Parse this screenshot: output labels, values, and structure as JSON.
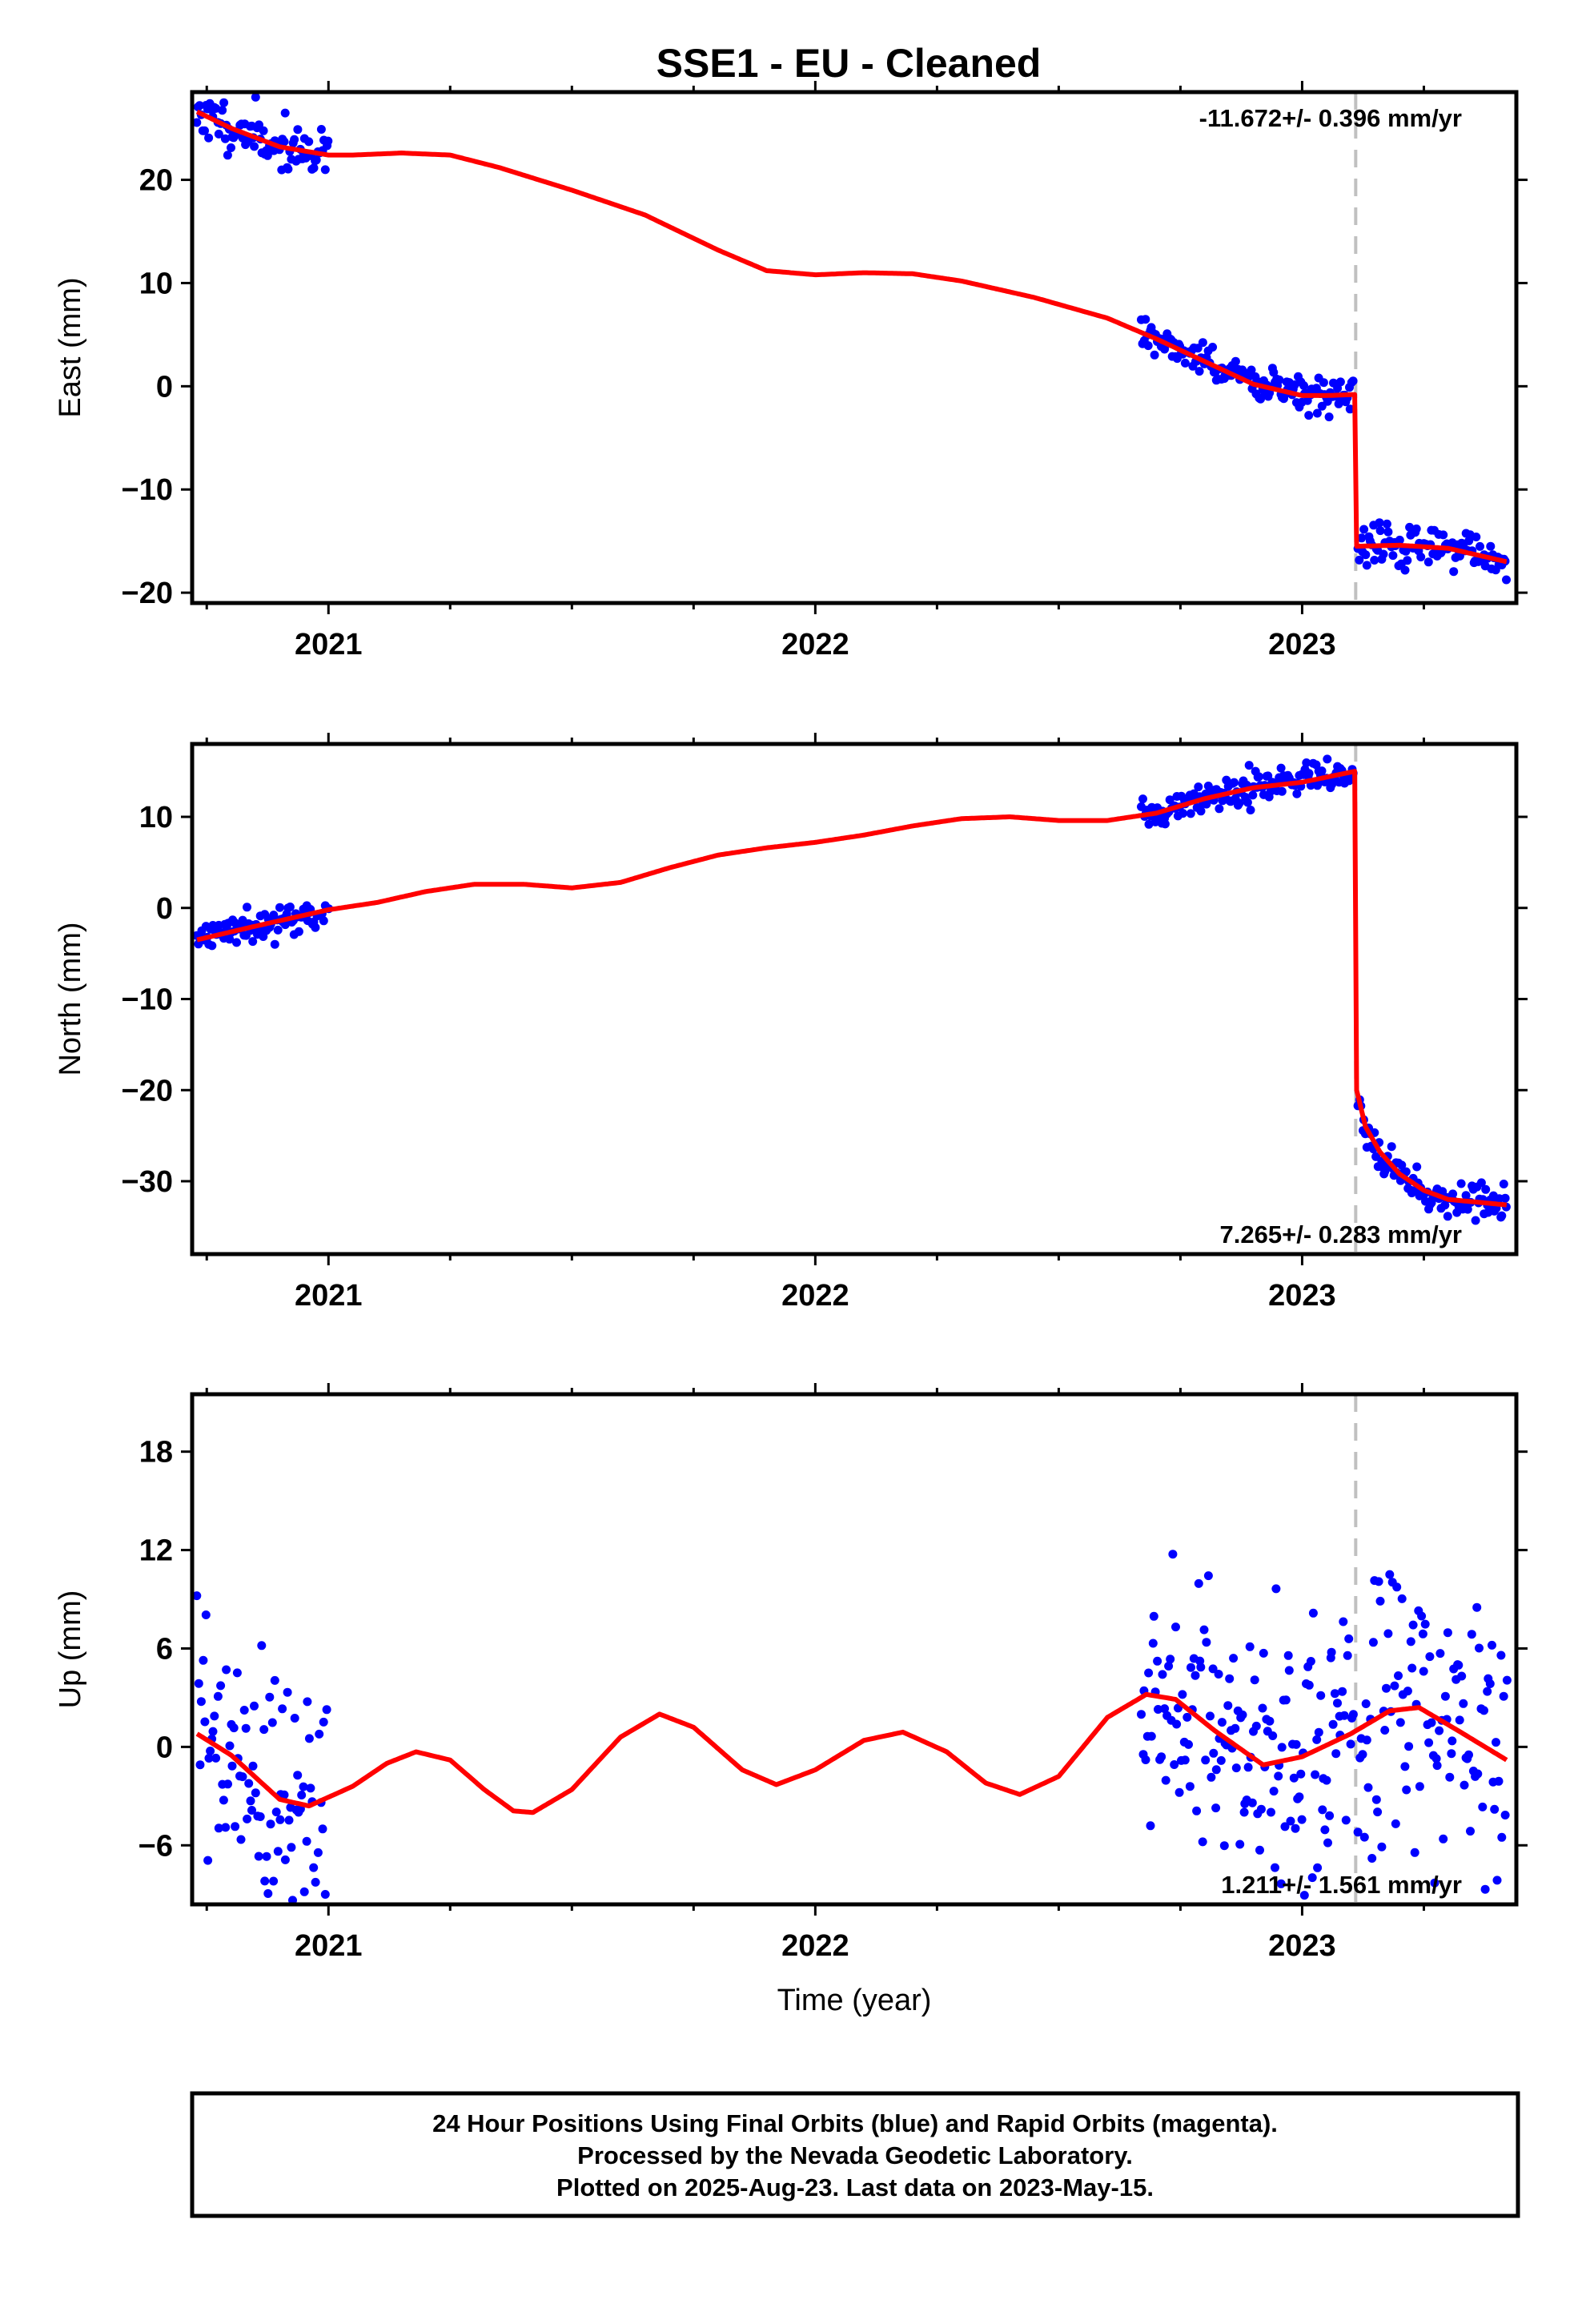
{
  "title": "SSE1  - EU - Cleaned",
  "footer": {
    "line1": "24 Hour Positions Using Final Orbits (blue) and Rapid Orbits (magenta).",
    "line2": "Processed by the Nevada Geodetic Laboratory.",
    "line3": "Plotted on 2025-Aug-23. Last data on 2023-May-15."
  },
  "colors": {
    "data_points": "#0000ff",
    "model_fit": "#ff0000",
    "break_line": "#c0c0c0",
    "frame": "#000000"
  },
  "chart_data": [
    {
      "type": "scatter",
      "id": "east",
      "ylabel": "East (mm)",
      "xlabel": "",
      "xlim": [
        2020.72,
        2023.44
      ],
      "ylim": [
        -21,
        28.5
      ],
      "yticks": [
        -20,
        -10,
        0,
        10,
        20
      ],
      "ytick_labels": [
        "−20",
        "−10",
        "0",
        "10",
        "20"
      ],
      "xticks": [
        2021,
        2022,
        2023
      ],
      "xtick_labels": [
        "2021",
        "2022",
        "2023"
      ],
      "rate_label": "-11.672+/- 0.396 mm/yr",
      "rate_position": "top-right",
      "break_epoch": 2023.11,
      "show_break_line": true,
      "segments": [
        {
          "t0": 2020.73,
          "t1": 2021.0,
          "n": 90,
          "sigma": 1.1,
          "seed": 11
        },
        {
          "t0": 2022.67,
          "t1": 2023.105,
          "n": 150,
          "sigma": 0.9,
          "seed": 12
        },
        {
          "t0": 2023.115,
          "t1": 2023.42,
          "n": 100,
          "sigma": 1.0,
          "seed": 13
        }
      ],
      "model_curve": [
        [
          2020.73,
          26.6
        ],
        [
          2020.8,
          25.0
        ],
        [
          2020.9,
          23.2
        ],
        [
          2021.0,
          22.4
        ],
        [
          2021.05,
          22.4
        ],
        [
          2021.15,
          22.6
        ],
        [
          2021.25,
          22.4
        ],
        [
          2021.35,
          21.2
        ],
        [
          2021.5,
          19.0
        ],
        [
          2021.65,
          16.6
        ],
        [
          2021.8,
          13.2
        ],
        [
          2021.9,
          11.2
        ],
        [
          2022.0,
          10.8
        ],
        [
          2022.1,
          11.0
        ],
        [
          2022.2,
          10.9
        ],
        [
          2022.3,
          10.2
        ],
        [
          2022.45,
          8.6
        ],
        [
          2022.6,
          6.6
        ],
        [
          2022.7,
          4.6
        ],
        [
          2022.8,
          2.4
        ],
        [
          2022.9,
          0.2
        ],
        [
          2023.0,
          -0.9
        ],
        [
          2023.05,
          -0.9
        ],
        [
          2023.108,
          -0.8
        ],
        [
          2023.112,
          -15.5
        ],
        [
          2023.2,
          -15.4
        ],
        [
          2023.3,
          -15.7
        ],
        [
          2023.42,
          -17.0
        ]
      ]
    },
    {
      "type": "scatter",
      "id": "north",
      "ylabel": "North (mm)",
      "xlabel": "",
      "xlim": [
        2020.72,
        2023.44
      ],
      "ylim": [
        -38,
        18
      ],
      "yticks": [
        -30,
        -20,
        -10,
        0,
        10
      ],
      "ytick_labels": [
        "−30",
        "−20",
        "−10",
        "0",
        "10"
      ],
      "xticks": [
        2021,
        2022,
        2023
      ],
      "xtick_labels": [
        "2021",
        "2022",
        "2023"
      ],
      "rate_label": "7.265+/- 0.283 mm/yr",
      "rate_position": "bottom-right",
      "break_epoch": 2023.11,
      "show_break_line": true,
      "segments": [
        {
          "t0": 2020.73,
          "t1": 2021.0,
          "n": 90,
          "sigma": 0.8,
          "seed": 21
        },
        {
          "t0": 2022.67,
          "t1": 2023.105,
          "n": 150,
          "sigma": 0.8,
          "seed": 22
        },
        {
          "t0": 2023.115,
          "t1": 2023.42,
          "n": 100,
          "sigma": 0.9,
          "seed": 23
        }
      ],
      "model_curve": [
        [
          2020.73,
          -3.5
        ],
        [
          2020.85,
          -2.0
        ],
        [
          2021.0,
          -0.2
        ],
        [
          2021.1,
          0.6
        ],
        [
          2021.2,
          1.8
        ],
        [
          2021.3,
          2.6
        ],
        [
          2021.4,
          2.6
        ],
        [
          2021.5,
          2.2
        ],
        [
          2021.6,
          2.8
        ],
        [
          2021.7,
          4.4
        ],
        [
          2021.8,
          5.8
        ],
        [
          2021.9,
          6.6
        ],
        [
          2022.0,
          7.2
        ],
        [
          2022.1,
          8.0
        ],
        [
          2022.2,
          9.0
        ],
        [
          2022.3,
          9.8
        ],
        [
          2022.4,
          10.0
        ],
        [
          2022.5,
          9.6
        ],
        [
          2022.6,
          9.6
        ],
        [
          2022.7,
          10.4
        ],
        [
          2022.8,
          12.0
        ],
        [
          2022.9,
          13.2
        ],
        [
          2023.0,
          13.8
        ],
        [
          2023.108,
          15.0
        ],
        [
          2023.112,
          -20.0
        ],
        [
          2023.13,
          -24.0
        ],
        [
          2023.16,
          -26.8
        ],
        [
          2023.2,
          -29.2
        ],
        [
          2023.25,
          -31.0
        ],
        [
          2023.3,
          -32.0
        ],
        [
          2023.42,
          -32.6
        ]
      ]
    },
    {
      "type": "scatter",
      "id": "up",
      "ylabel": "Up (mm)",
      "xlabel": "Time (year)",
      "xlim": [
        2020.72,
        2023.44
      ],
      "ylim": [
        -9.6,
        21.5
      ],
      "yticks": [
        -6,
        0,
        6,
        12,
        18
      ],
      "ytick_labels": [
        "−6",
        "0",
        "6",
        "12",
        "18"
      ],
      "xticks": [
        2021,
        2022,
        2023
      ],
      "xtick_labels": [
        "2021",
        "2022",
        "2023"
      ],
      "rate_label": "1.211+/- 1.561 mm/yr",
      "rate_position": "bottom-right",
      "break_epoch": 2023.11,
      "show_break_line": true,
      "segments": [
        {
          "t0": 2020.73,
          "t1": 2021.0,
          "n": 90,
          "sigma": 4.0,
          "seed": 31
        },
        {
          "t0": 2022.67,
          "t1": 2023.105,
          "n": 150,
          "sigma": 4.5,
          "seed": 32
        },
        {
          "t0": 2023.115,
          "t1": 2023.42,
          "n": 100,
          "sigma": 4.5,
          "seed": 33
        }
      ],
      "model_curve": [
        [
          2020.73,
          0.8
        ],
        [
          2020.8,
          -0.5
        ],
        [
          2020.9,
          -3.2
        ],
        [
          2020.96,
          -3.6
        ],
        [
          2021.05,
          -2.4
        ],
        [
          2021.12,
          -1.0
        ],
        [
          2021.18,
          -0.3
        ],
        [
          2021.25,
          -0.8
        ],
        [
          2021.32,
          -2.6
        ],
        [
          2021.38,
          -3.9
        ],
        [
          2021.42,
          -4.0
        ],
        [
          2021.5,
          -2.6
        ],
        [
          2021.6,
          0.6
        ],
        [
          2021.68,
          2.0
        ],
        [
          2021.75,
          1.2
        ],
        [
          2021.85,
          -1.4
        ],
        [
          2021.92,
          -2.3
        ],
        [
          2022.0,
          -1.4
        ],
        [
          2022.1,
          0.4
        ],
        [
          2022.18,
          0.9
        ],
        [
          2022.27,
          -0.3
        ],
        [
          2022.35,
          -2.2
        ],
        [
          2022.42,
          -2.9
        ],
        [
          2022.5,
          -1.8
        ],
        [
          2022.6,
          1.8
        ],
        [
          2022.68,
          3.2
        ],
        [
          2022.74,
          2.9
        ],
        [
          2022.82,
          1.0
        ],
        [
          2022.92,
          -1.1
        ],
        [
          2023.0,
          -0.6
        ],
        [
          2023.1,
          0.8
        ],
        [
          2023.18,
          2.2
        ],
        [
          2023.24,
          2.4
        ],
        [
          2023.32,
          1.0
        ],
        [
          2023.42,
          -0.8
        ]
      ]
    }
  ]
}
